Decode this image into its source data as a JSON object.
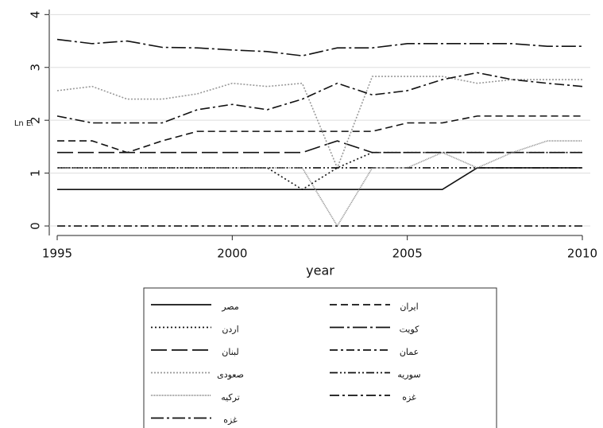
{
  "chart_data": {
    "type": "line",
    "xlabel": "year",
    "ylabel": "Ln Eₜ",
    "x": [
      1995,
      1996,
      1997,
      1998,
      1999,
      2000,
      2001,
      2002,
      2003,
      2004,
      2005,
      2006,
      2007,
      2008,
      2009,
      2010
    ],
    "xlim": [
      1995,
      2010
    ],
    "xticks": [
      1995,
      2000,
      2005,
      2010
    ],
    "ylim": [
      -0.18,
      4.05
    ],
    "yticks": [
      0,
      1,
      2,
      3,
      4
    ],
    "grid": true,
    "series": [
      {
        "name": "مصر",
        "color": "#111111",
        "dash": "",
        "values": [
          0.69,
          0.69,
          0.69,
          0.69,
          0.69,
          0.69,
          0.69,
          0.69,
          0.69,
          0.69,
          0.69,
          0.69,
          1.1,
          1.1,
          1.1,
          1.1
        ]
      },
      {
        "name": "ایران",
        "color": "#111111",
        "dash": "9,5",
        "values": [
          1.61,
          1.61,
          1.39,
          1.61,
          1.79,
          1.79,
          1.79,
          1.79,
          1.79,
          1.79,
          1.95,
          1.95,
          2.08,
          2.08,
          2.08,
          2.08
        ]
      },
      {
        "name": "اردن",
        "color": "#111111",
        "dash": "2,3",
        "values": [
          1.1,
          1.1,
          1.1,
          1.1,
          1.1,
          1.1,
          1.1,
          0.69,
          1.1,
          1.39,
          1.39,
          1.39,
          1.39,
          1.39,
          1.39,
          1.39
        ]
      },
      {
        "name": "کویت",
        "color": "#111111",
        "dash": "18,4,3,4",
        "values": [
          3.53,
          3.45,
          3.5,
          3.38,
          3.37,
          3.33,
          3.3,
          3.22,
          3.37,
          3.37,
          3.45,
          3.45,
          3.45,
          3.45,
          3.4,
          3.4
        ]
      },
      {
        "name": "لبنان",
        "color": "#111111",
        "dash": "20,6",
        "values": [
          1.39,
          1.39,
          1.39,
          1.39,
          1.39,
          1.39,
          1.39,
          1.39,
          1.61,
          1.39,
          1.39,
          1.39,
          1.39,
          1.39,
          1.39,
          1.39
        ]
      },
      {
        "name": "عمان",
        "color": "#111111",
        "dash": "10,4,3,4",
        "values": [
          0,
          0,
          0,
          0,
          0,
          0,
          0,
          0,
          0,
          0,
          0,
          0,
          0,
          0,
          0,
          0
        ]
      },
      {
        "name": "صعودی",
        "color": "#999999",
        "dash": "2,2",
        "values": [
          2.56,
          2.64,
          2.4,
          2.4,
          2.5,
          2.7,
          2.64,
          2.7,
          1.1,
          2.83,
          2.83,
          2.83,
          2.7,
          2.77,
          2.77,
          2.77
        ]
      },
      {
        "name": "سوریه",
        "color": "#111111",
        "dash": "10,3,2,3,2,3",
        "values": [
          1.1,
          1.1,
          1.1,
          1.1,
          1.1,
          1.1,
          1.1,
          1.1,
          1.1,
          1.1,
          1.1,
          1.1,
          1.1,
          1.1,
          1.1,
          1.1
        ]
      },
      {
        "name": "ترکیه",
        "color": "#888888",
        "dash": "1,1",
        "values": [
          1.1,
          1.1,
          1.1,
          1.1,
          1.1,
          1.1,
          1.1,
          1.1,
          0,
          1.1,
          1.1,
          1.39,
          1.1,
          1.39,
          1.61,
          1.61
        ]
      },
      {
        "name": "غزه",
        "color": "#111111",
        "dash": "12,4,3,4",
        "values": [
          2.08,
          1.95,
          1.95,
          1.95,
          2.2,
          2.3,
          2.2,
          2.4,
          2.7,
          2.48,
          2.56,
          2.77,
          2.9,
          2.77,
          2.7,
          2.64
        ]
      },
      {
        "name": "غزه",
        "color": "#111111",
        "dash": "16,4,3,4",
        "values": [
          null,
          null,
          null,
          null,
          null,
          null,
          null,
          null,
          null,
          null,
          null,
          null,
          null,
          null,
          null,
          null
        ]
      }
    ]
  }
}
